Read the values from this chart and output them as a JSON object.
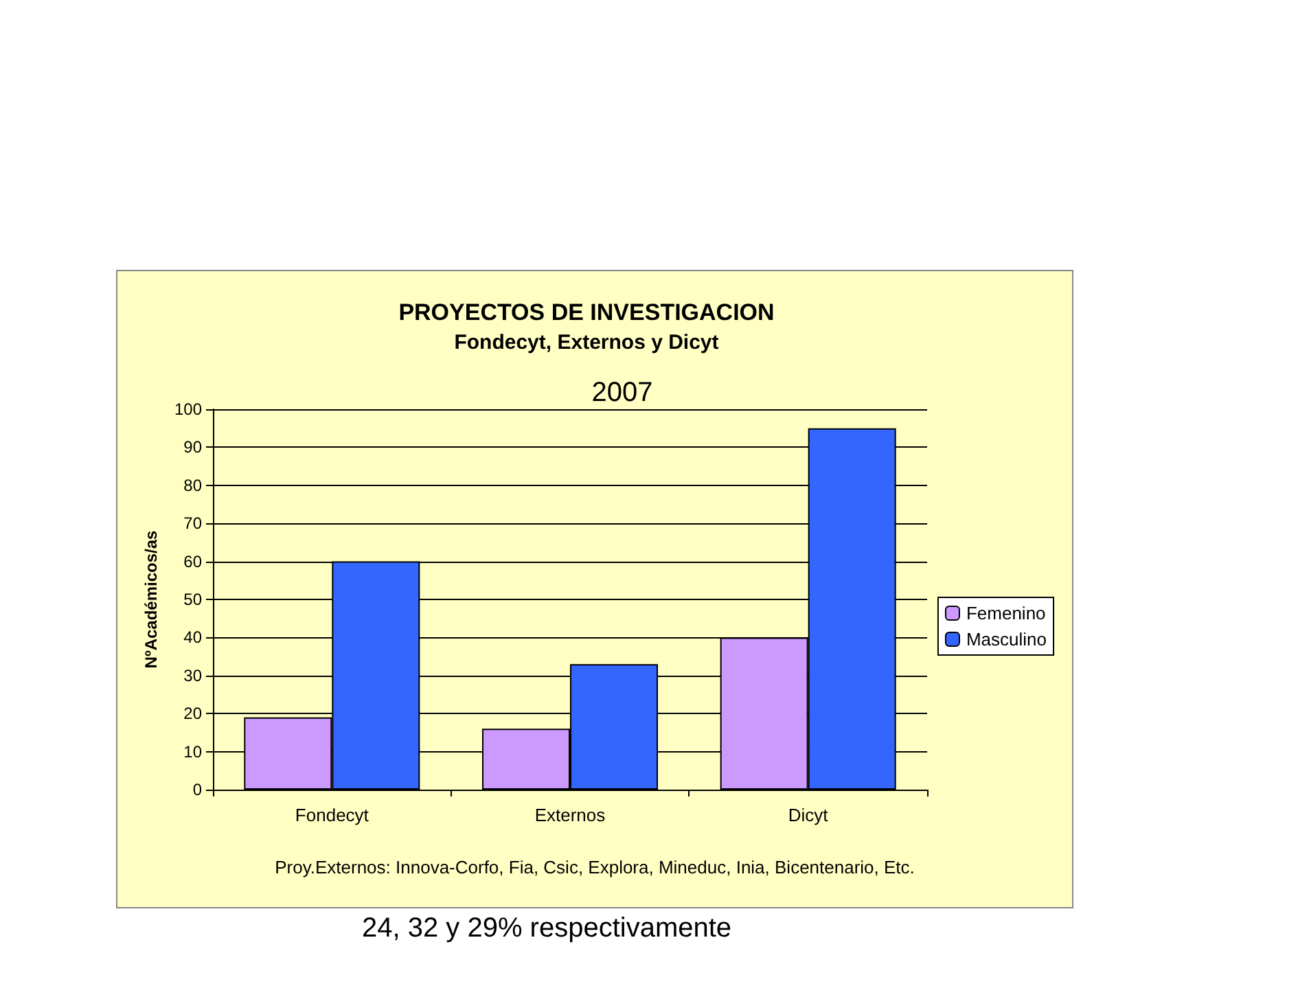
{
  "chart_data": {
    "type": "bar",
    "title": "PROYECTOS DE INVESTIGACION",
    "subtitle": "Fondecyt, Externos y Dicyt",
    "ylabel": "NºAcadémicos/as",
    "categories": [
      "Fondecyt",
      "Externos",
      "Dicyt"
    ],
    "series": [
      {
        "name": "Femenino",
        "color": "#cc99ff",
        "values": [
          19,
          16,
          40
        ]
      },
      {
        "name": "Masculino",
        "color": "#3366ff",
        "values": [
          60,
          33,
          95
        ]
      }
    ],
    "ylim": [
      0,
      100
    ],
    "yticks": [
      0,
      10,
      20,
      30,
      40,
      50,
      60,
      70,
      80,
      90,
      100
    ],
    "grid": "y",
    "legend": "right",
    "annotations": [
      "2007",
      "Proy.Externos: Innova-Corfo, Fia, Csic, Explora, Mineduc, Inia, Bicentenario, Etc.",
      "24, 32 y 29% respectivamente"
    ]
  }
}
